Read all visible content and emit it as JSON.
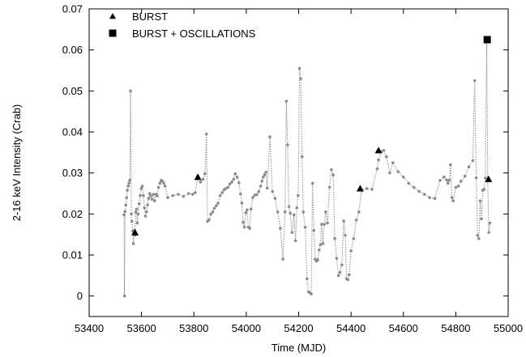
{
  "chart_data": {
    "type": "scatter",
    "title": "",
    "xlabel": "Time (MJD)",
    "ylabel": "2-16 keV Intensity (Crab)",
    "xlim": [
      53400,
      55000
    ],
    "ylim": [
      -0.005,
      0.07
    ],
    "xticks": [
      53400,
      53600,
      53800,
      54000,
      54200,
      54400,
      54600,
      54800,
      55000
    ],
    "yticks": [
      0,
      0.01,
      0.02,
      0.03,
      0.04,
      0.05,
      0.06,
      0.07
    ],
    "xtick_labels": [
      "53400",
      "53600",
      "53800",
      "54000",
      "54200",
      "54400",
      "54600",
      "54800",
      "55000"
    ],
    "ytick_labels": [
      "0",
      "0.01",
      "0.02",
      "0.03",
      "0.04",
      "0.05",
      "0.06",
      "0.07"
    ],
    "grid": false,
    "legend_position": "top-left",
    "series": [
      {
        "key": "lightcurve",
        "style": "gray dotted line with small markers",
        "color": "#8c8c8c",
        "x": [
          53533,
          53535,
          53537,
          53540,
          53543,
          53546,
          53549,
          53552,
          53555,
          53558,
          53561,
          53563,
          53566,
          53569,
          53572,
          53575,
          53578,
          53581,
          53584,
          53587,
          53591,
          53595,
          53599,
          53603,
          53607,
          53611,
          53615,
          53619,
          53623,
          53627,
          53631,
          53635,
          53640,
          53645,
          53650,
          53655,
          53660,
          53665,
          53670,
          53675,
          53680,
          53685,
          53690,
          53700,
          53720,
          53740,
          53760,
          53780,
          53795,
          53805,
          53815,
          53825,
          53835,
          53842,
          53848,
          53852,
          53858,
          53865,
          53872,
          53878,
          53885,
          53892,
          53900,
          53908,
          53915,
          53922,
          53930,
          53937,
          53945,
          53952,
          53958,
          53965,
          53972,
          53978,
          53983,
          53988,
          53993,
          53998,
          54003,
          54008,
          54013,
          54018,
          54025,
          54032,
          54040,
          54048,
          54055,
          54060,
          54065,
          54070,
          54075,
          54080,
          54090,
          54100,
          54110,
          54120,
          54130,
          54140,
          54148,
          54153,
          54158,
          54163,
          54168,
          54175,
          54182,
          54188,
          54193,
          54198,
          54203,
          54208,
          54213,
          54218,
          54225,
          54232,
          54238,
          54243,
          54248,
          54253,
          54258,
          54263,
          54268,
          54273,
          54278,
          54283,
          54288,
          54293,
          54298,
          54303,
          54310,
          54318,
          54325,
          54332,
          54338,
          54345,
          54352,
          54358,
          54365,
          54372,
          54378,
          54383,
          54388,
          54393,
          54400,
          54410,
          54420,
          54430,
          54440,
          54460,
          54480,
          54500,
          54505,
          54515,
          54525,
          54535,
          54548,
          54560,
          54580,
          54600,
          54620,
          54640,
          54660,
          54680,
          54700,
          54720,
          54740,
          54755,
          54765,
          54770,
          54775,
          54780,
          54785,
          54790,
          54800,
          54810,
          54820,
          54835,
          54850,
          54865,
          54872,
          54878,
          54883,
          54888,
          54893,
          54898,
          54903,
          54908,
          54913,
          54918,
          54922,
          54926,
          54930
        ],
        "y": [
          0.0198,
          0.0,
          0.0206,
          0.0222,
          0.024,
          0.0258,
          0.0268,
          0.0275,
          0.0282,
          0.05,
          0.02,
          0.0182,
          0.0158,
          0.0128,
          0.016,
          0.0148,
          0.0205,
          0.0212,
          0.0178,
          0.02,
          0.0225,
          0.0245,
          0.0262,
          0.0268,
          0.0245,
          0.0215,
          0.0195,
          0.0205,
          0.0222,
          0.0238,
          0.025,
          0.0244,
          0.0236,
          0.0248,
          0.0232,
          0.0248,
          0.0244,
          0.0265,
          0.0275,
          0.0282,
          0.028,
          0.0275,
          0.0268,
          0.024,
          0.0245,
          0.0248,
          0.0243,
          0.025,
          0.0248,
          0.0252,
          0.0292,
          0.0278,
          0.0285,
          0.0298,
          0.0395,
          0.0182,
          0.0186,
          0.02,
          0.0205,
          0.0214,
          0.022,
          0.0226,
          0.0245,
          0.0252,
          0.0259,
          0.0262,
          0.0265,
          0.0273,
          0.0278,
          0.0285,
          0.0298,
          0.029,
          0.0276,
          0.0249,
          0.0227,
          0.018,
          0.0168,
          0.0203,
          0.021,
          0.0168,
          0.0165,
          0.0212,
          0.024,
          0.0246,
          0.0247,
          0.0255,
          0.0268,
          0.028,
          0.029,
          0.0296,
          0.0302,
          0.0263,
          0.0388,
          0.0255,
          0.0238,
          0.0205,
          0.0165,
          0.009,
          0.0205,
          0.0475,
          0.0368,
          0.0218,
          0.0202,
          0.0155,
          0.0198,
          0.0135,
          0.0215,
          0.0245,
          0.0555,
          0.053,
          0.034,
          0.0205,
          0.0168,
          0.0042,
          0.001,
          0.0008,
          0.0005,
          0.0275,
          0.016,
          0.009,
          0.0085,
          0.0088,
          0.0112,
          0.0125,
          0.0175,
          0.0128,
          0.0175,
          0.0205,
          0.0178,
          0.0265,
          0.0308,
          0.0295,
          0.014,
          0.0092,
          0.005,
          0.0058,
          0.0076,
          0.0183,
          0.0148,
          0.0042,
          0.004,
          0.0052,
          0.011,
          0.014,
          0.0185,
          0.0205,
          0.0258,
          0.0262,
          0.026,
          0.031,
          0.0332,
          0.0352,
          0.0355,
          0.034,
          0.03,
          0.0325,
          0.0303,
          0.029,
          0.0275,
          0.0265,
          0.0255,
          0.0248,
          0.024,
          0.0238,
          0.0282,
          0.029,
          0.0283,
          0.0275,
          0.0282,
          0.032,
          0.024,
          0.0232,
          0.0265,
          0.0268,
          0.028,
          0.0292,
          0.0315,
          0.033,
          0.0525,
          0.0288,
          0.0148,
          0.014,
          0.0232,
          0.0188,
          0.0258,
          0.026,
          0.0288,
          0.0625,
          0.028,
          0.0155,
          0.0178
        ]
      },
      {
        "name": "BURST",
        "marker": "triangle",
        "color": "#000000",
        "x": [
          53575,
          53815,
          54435,
          54505,
          54925
        ],
        "y": [
          0.0155,
          0.029,
          0.0262,
          0.0355,
          0.0285
        ]
      },
      {
        "name": "BURST + OSCILLATIONS",
        "marker": "square",
        "color": "#000000",
        "x": [
          54920
        ],
        "y": [
          0.0625
        ]
      }
    ]
  }
}
